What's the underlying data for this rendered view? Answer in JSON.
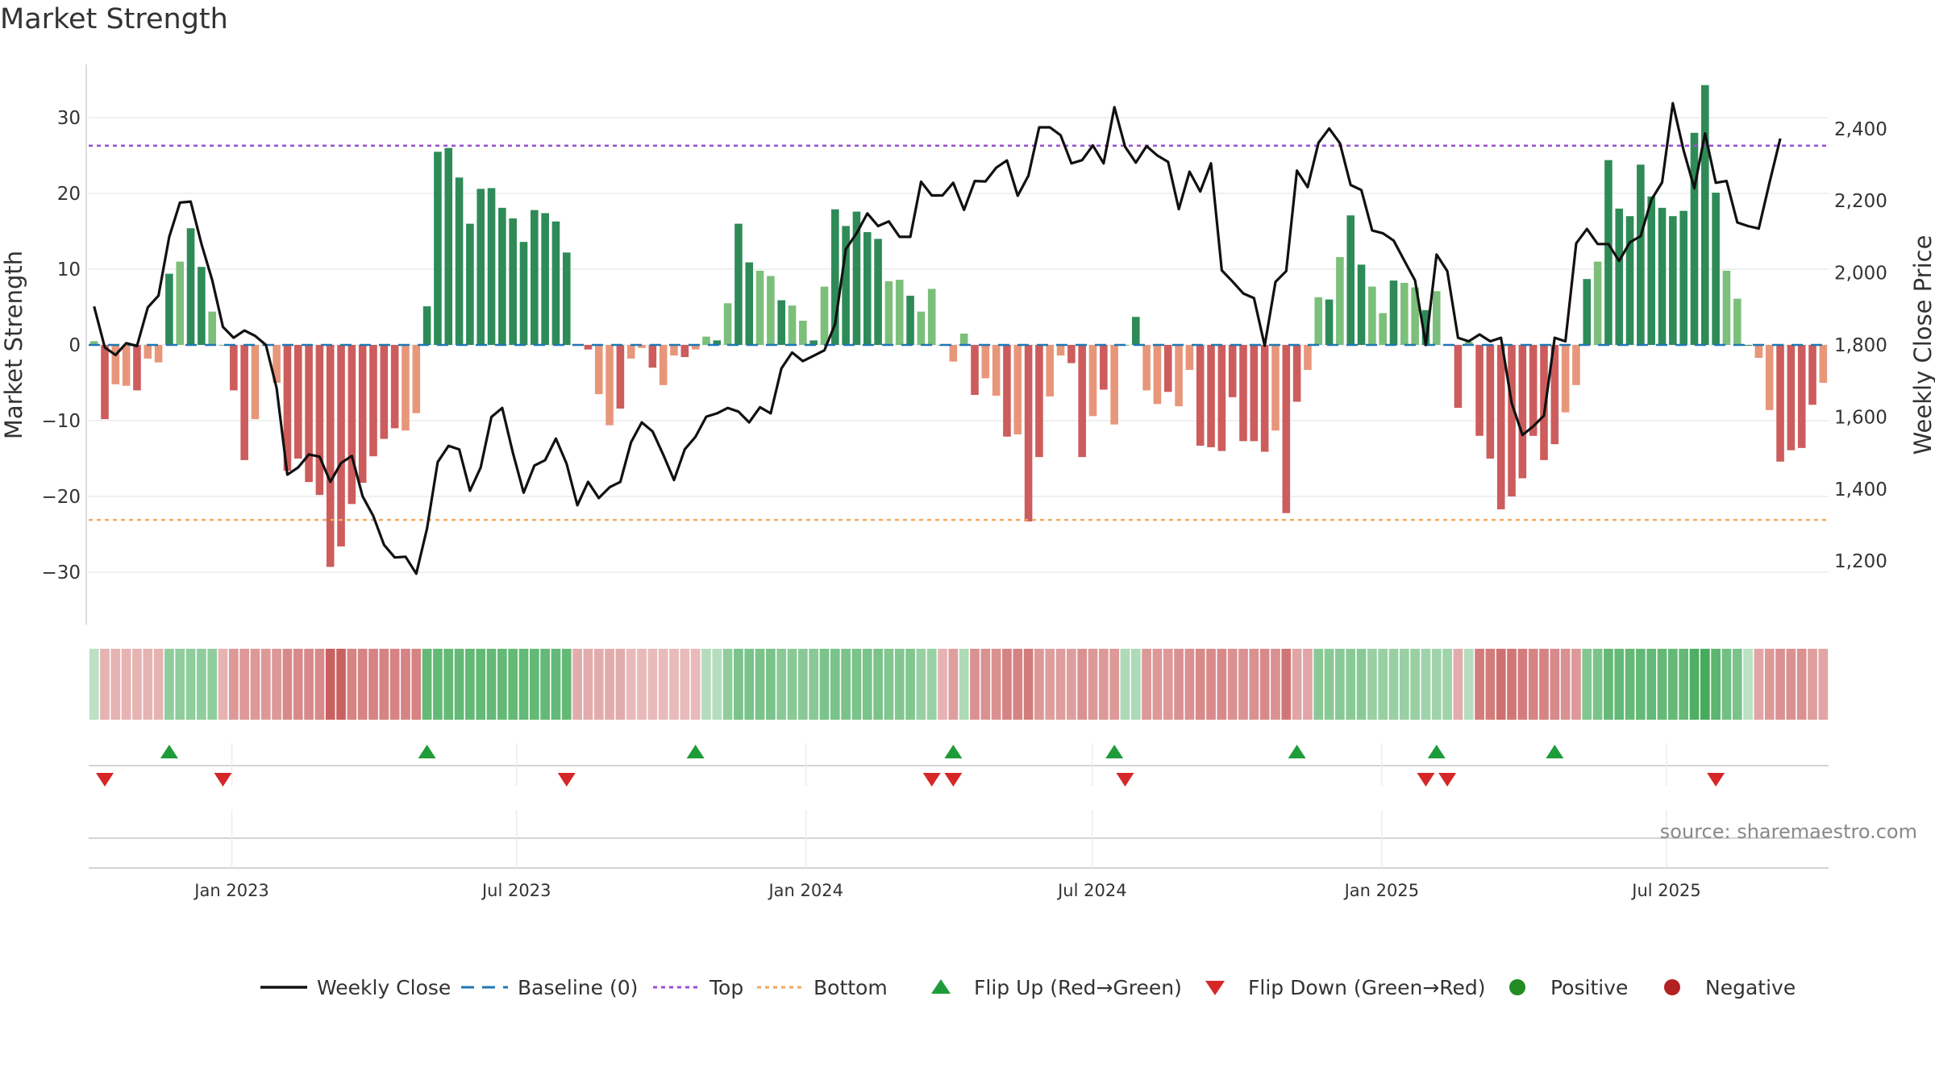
{
  "chart_data": {
    "type": "bar",
    "title": "Market Strength",
    "ylabel": "Market Strength",
    "y2label": "Weekly Close Price",
    "ylim": [
      -37,
      37
    ],
    "y2lim": [
      1030,
      2570
    ],
    "yticks": [
      30,
      20,
      10,
      0,
      -10,
      -20,
      -30
    ],
    "ytick_labels": [
      "30",
      "20",
      "10",
      "0",
      "−10",
      "−20",
      "−30"
    ],
    "y2ticks": [
      2400,
      2200,
      2000,
      1800,
      1600,
      1400,
      1200
    ],
    "y2tick_labels": [
      "2,400",
      "2,200",
      "2,000",
      "1,800",
      "1,600",
      "1,400",
      "1,200"
    ],
    "top_line": 26.3,
    "bottom_line": -23.1,
    "x_start": "2022-10-02",
    "x_end": "2025-10-12",
    "date_ticks": [
      {
        "date": "2023-01-01",
        "label": "Jan 2023"
      },
      {
        "date": "2023-07-01",
        "label": "Jul 2023"
      },
      {
        "date": "2024-01-01",
        "label": "Jan 2024"
      },
      {
        "date": "2024-07-01",
        "label": "Jul 2024"
      },
      {
        "date": "2025-01-01",
        "label": "Jan 2025"
      },
      {
        "date": "2025-07-01",
        "label": "Jul 2025"
      }
    ],
    "strength": [
      0.5,
      -9.8,
      -5.2,
      -5.4,
      -6,
      -1.8,
      -2.3,
      9.4,
      11,
      15.4,
      10.3,
      4.4,
      0,
      -6,
      -15.2,
      -9.8,
      0,
      -5,
      -16.6,
      -15,
      -18.1,
      -19.8,
      -29.3,
      -26.6,
      -21,
      -18.2,
      -14.7,
      -12.4,
      -11,
      -11.3,
      -9,
      5.1,
      25.5,
      26,
      22.1,
      16,
      20.6,
      20.7,
      18.1,
      16.7,
      13.6,
      17.8,
      17.4,
      16.3,
      12.2,
      0,
      -0.6,
      -6.5,
      -10.6,
      -8.4,
      -1.8,
      -0.4,
      -3,
      -5.3,
      -1.4,
      -1.6,
      -0.6,
      1.1,
      0.6,
      5.5,
      16,
      10.9,
      9.8,
      9.1,
      5.9,
      5.2,
      3.2,
      0.6,
      7.7,
      17.9,
      15.7,
      17.6,
      14.9,
      14,
      8.4,
      8.6,
      6.5,
      4.4,
      7.4,
      0,
      -2.2,
      1.5,
      -6.6,
      -4.4,
      -6.7,
      -12.1,
      -11.8,
      -23.3,
      -14.8,
      -6.8,
      -1.4,
      -2.4,
      -14.8,
      -9.4,
      -5.9,
      -10.5,
      0,
      3.7,
      -6,
      -7.8,
      -6.2,
      -8.1,
      -3.3,
      -13.3,
      -13.5,
      -14,
      -6.9,
      -12.7,
      -12.7,
      -14.1,
      -11.3,
      -22.2,
      -7.5,
      -3.3,
      6.3,
      6,
      11.6,
      17.1,
      10.6,
      7.7,
      4.2,
      8.5,
      8.2,
      7.6,
      4.6,
      7.1,
      0,
      -8.3,
      0.4,
      -12,
      -15,
      -21.7,
      -20,
      -17.6,
      -12,
      -15.2,
      -13.1,
      -8.9,
      -5.3,
      8.7,
      11,
      24.4,
      18,
      17,
      23.8,
      19.6,
      18.1,
      17,
      17.7,
      28,
      34.3,
      20.1,
      9.8,
      6.1,
      0,
      -1.7,
      -8.6,
      -15.4,
      -13.9,
      -13.6,
      -7.9,
      -5
    ],
    "close": [
      1907,
      1793,
      1772,
      1805,
      1797,
      1904,
      1937,
      2100,
      2195,
      2198,
      2080,
      1980,
      1850,
      1820,
      1840,
      1825,
      1800,
      1680,
      1440,
      1460,
      1496,
      1490,
      1420,
      1472,
      1492,
      1380,
      1325,
      1245,
      1210,
      1212,
      1165,
      1290,
      1475,
      1520,
      1510,
      1395,
      1460,
      1600,
      1625,
      1500,
      1390,
      1465,
      1480,
      1540,
      1470,
      1355,
      1420,
      1375,
      1405,
      1420,
      1530,
      1585,
      1560,
      1495,
      1425,
      1510,
      1545,
      1601,
      1610,
      1625,
      1615,
      1585,
      1627,
      1610,
      1735,
      1779,
      1755,
      1770,
      1785,
      1858,
      2066,
      2110,
      2165,
      2130,
      2143,
      2100,
      2100,
      2253,
      2215,
      2215,
      2250,
      2175,
      2255,
      2254,
      2292,
      2312,
      2214,
      2270,
      2404,
      2404,
      2382,
      2304,
      2313,
      2354,
      2304,
      2460,
      2350,
      2306,
      2352,
      2326,
      2308,
      2177,
      2281,
      2226,
      2304,
      2007,
      1976,
      1943,
      1930,
      1798,
      1975,
      2005,
      2284,
      2238,
      2361,
      2401,
      2360,
      2244,
      2230,
      2118,
      2110,
      2090,
      2034,
      1979,
      1800,
      2051,
      2005,
      1820,
      1810,
      1829,
      1810,
      1820,
      1638,
      1550,
      1574,
      1604,
      1820,
      1810,
      2082,
      2122,
      2080,
      2080,
      2033,
      2085,
      2102,
      2203,
      2251,
      2471,
      2340,
      2235,
      2387,
      2250,
      2255,
      2140,
      2130,
      2123,
      2250,
      2373
    ],
    "heat_cells": [
      0.1,
      -0.2,
      -0.2,
      -0.2,
      -0.2,
      -0.2,
      -0.2,
      0.4,
      0.4,
      0.4,
      0.4,
      0.4,
      -0.2,
      -0.4,
      -0.4,
      -0.4,
      -0.4,
      -0.4,
      -0.5,
      -0.5,
      -0.5,
      -0.5,
      -0.8,
      -0.8,
      -0.55,
      -0.55,
      -0.55,
      -0.55,
      -0.55,
      -0.55,
      -0.55,
      0.7,
      0.7,
      0.7,
      0.7,
      0.7,
      0.7,
      0.7,
      0.7,
      0.7,
      0.7,
      0.7,
      0.7,
      0.7,
      0.7,
      -0.25,
      -0.25,
      -0.25,
      -0.25,
      -0.25,
      -0.15,
      -0.15,
      -0.15,
      -0.15,
      -0.15,
      -0.15,
      -0.15,
      0.15,
      0.15,
      0.4,
      0.55,
      0.55,
      0.55,
      0.55,
      0.45,
      0.45,
      0.45,
      0.45,
      0.55,
      0.55,
      0.55,
      0.55,
      0.55,
      0.55,
      0.5,
      0.5,
      0.5,
      0.35,
      0.35,
      -0.2,
      -0.35,
      0.2,
      -0.45,
      -0.45,
      -0.45,
      -0.55,
      -0.55,
      -0.6,
      -0.4,
      -0.35,
      -0.35,
      -0.35,
      -0.45,
      -0.4,
      -0.4,
      -0.4,
      0.2,
      0.2,
      -0.4,
      -0.4,
      -0.4,
      -0.45,
      -0.45,
      -0.5,
      -0.5,
      -0.5,
      -0.45,
      -0.45,
      -0.45,
      -0.5,
      -0.45,
      -0.65,
      -0.3,
      -0.3,
      0.45,
      0.45,
      0.45,
      0.45,
      0.45,
      0.35,
      0.35,
      0.35,
      0.35,
      0.35,
      0.3,
      0.3,
      0.3,
      -0.25,
      0.15,
      -0.6,
      -0.6,
      -0.7,
      -0.65,
      -0.6,
      -0.55,
      -0.55,
      -0.5,
      -0.45,
      -0.4,
      0.5,
      0.55,
      0.7,
      0.7,
      0.7,
      0.7,
      0.7,
      0.7,
      0.7,
      0.7,
      0.85,
      0.9,
      0.75,
      0.6,
      0.55,
      0.1,
      -0.3,
      -0.4,
      -0.45,
      -0.45,
      -0.45,
      -0.35,
      -0.3
    ],
    "flip_up_weeks": [
      7,
      31,
      56,
      80,
      95,
      112,
      125,
      136
    ],
    "flip_down_weeks": [
      1,
      12,
      44,
      78,
      80,
      96,
      124,
      126,
      151
    ],
    "colors": {
      "strong_green": "#2e8b57",
      "light_green": "#7cbf7a",
      "strong_red": "#cd5c5c",
      "light_red": "#e8967a",
      "price_line": "#111111",
      "baseline": "#1f77b4",
      "top_line": "#9a4fd0",
      "bottom_line": "#f0a860",
      "flip_up": "#1e9c3a",
      "flip_down": "#d62728",
      "positive": "#228b22",
      "negative": "#b22222"
    },
    "legend": [
      {
        "label": "Weekly Close",
        "kind": "line-solid",
        "color": "#111111"
      },
      {
        "label": "Baseline (0)",
        "kind": "line-dash",
        "color": "#1f77b4"
      },
      {
        "label": "Top",
        "kind": "line-dot",
        "color": "#9a4fd0"
      },
      {
        "label": "Bottom",
        "kind": "line-dot",
        "color": "#f0a860"
      },
      {
        "label": "Flip Up (Red→Green)",
        "kind": "tri-up",
        "color": "#1e9c3a"
      },
      {
        "label": "Flip Down (Green→Red)",
        "kind": "tri-down",
        "color": "#d62728"
      },
      {
        "label": "Positive",
        "kind": "dot",
        "color": "#228b22"
      },
      {
        "label": "Negative",
        "kind": "dot",
        "color": "#b22222"
      }
    ],
    "legend_position": "bottom",
    "grid": true
  },
  "source_label": "source: sharemaestro.com"
}
